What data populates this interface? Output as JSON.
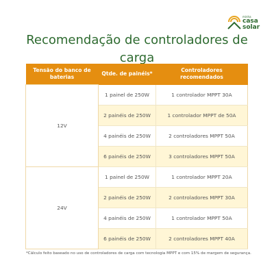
{
  "brand": {
    "line1": "minha",
    "line2": "casa",
    "line3": "solar",
    "color": "#2d6a2f",
    "accent": "#e8a521"
  },
  "title": "Recomendação de controladores de carga",
  "table": {
    "headers": [
      "Tensão do banco de baterias",
      "Qtde. de painéis*",
      "Controladores recomendados"
    ],
    "groups": [
      {
        "voltage": "12V",
        "rows": [
          {
            "panels": "1 painel de 250W",
            "controllers": "1 controlador MPPT 30A"
          },
          {
            "panels": "2 painéis de 250W",
            "controllers": "1 controlador MPPT de 50A"
          },
          {
            "panels": "4 painéis de 250W",
            "controllers": "2 controladores MPPT 50A"
          },
          {
            "panels": "6 painéis de 250W",
            "controllers": "3 controladores MPPT 50A"
          }
        ]
      },
      {
        "voltage": "24V",
        "rows": [
          {
            "panels": "1 painel de 250W",
            "controllers": "1 controlador MPPT 20A"
          },
          {
            "panels": "2 painéis de 250W",
            "controllers": "2 controladores MPPT 30A"
          },
          {
            "panels": "4 painéis de 250W",
            "controllers": "1 controlador MPPT 50A"
          },
          {
            "panels": "6 painéis de 250W",
            "controllers": "2 controladores MPPT 40A"
          }
        ]
      }
    ],
    "header_color": "#e58e10",
    "shade_color": "#fff6d6"
  },
  "footnote": "*Cálculo feito baseado no uso de controladores de carga com tecnologia MPPT e com 15% de margem de segurança."
}
